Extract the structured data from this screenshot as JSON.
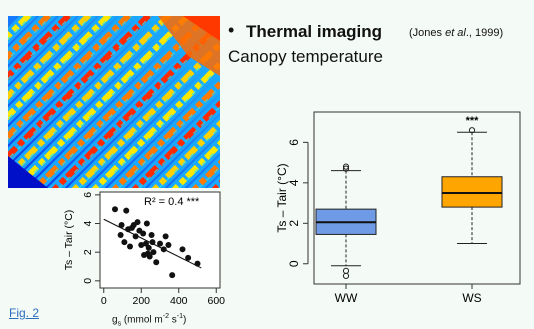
{
  "heading": {
    "bullet": "•",
    "title": "Thermal imaging",
    "citation_prefix": "(Jones ",
    "citation_italic": "et al",
    "citation_suffix": "., 1999)",
    "subtitle": "Canopy temperature"
  },
  "thermal_image": {
    "icon": "thermal-canopy-image"
  },
  "fig_link": "Fig. 2",
  "gs_axis_label": {
    "main": "g",
    "sub": "s",
    "unit_open": " (mmol m",
    "sup": "-2",
    "unit_mid": " s",
    "sup2": "-1",
    "unit_close": ")"
  },
  "chart_data": [
    {
      "type": "box",
      "ylabel": "Ts – Tair (°C)",
      "ylim": [
        -1,
        7.5
      ],
      "yticks": [
        0,
        2,
        4,
        6
      ],
      "categories": [
        "WW",
        "WS"
      ],
      "colors": {
        "WW": "#6f9ae6",
        "WS": "#ffa500"
      },
      "annotation": "***",
      "boxes": [
        {
          "name": "WW",
          "whisker_low": -0.1,
          "q1": 1.45,
          "median": 2.05,
          "q3": 2.7,
          "whisker_high": 4.6,
          "outliers": [
            4.8,
            4.7,
            -0.35,
            -0.6
          ]
        },
        {
          "name": "WS",
          "whisker_low": 1.0,
          "q1": 2.8,
          "median": 3.5,
          "q3": 4.3,
          "whisker_high": 6.5,
          "outliers": [
            6.6
          ]
        }
      ]
    },
    {
      "type": "scatter",
      "ylabel": "Ts – Tair (°C)",
      "xlim": [
        -20,
        620
      ],
      "ylim": [
        -0.5,
        6.2
      ],
      "xticks": [
        0,
        200,
        400,
        600
      ],
      "yticks": [
        0,
        2,
        4,
        6
      ],
      "annotation": "R² =  0.4 ***",
      "fit_line": [
        [
          0,
          4.3
        ],
        [
          520,
          0.9
        ]
      ],
      "points": [
        [
          60,
          5.0
        ],
        [
          95,
          3.9
        ],
        [
          120,
          4.9
        ],
        [
          140,
          2.4
        ],
        [
          110,
          2.7
        ],
        [
          150,
          3.7
        ],
        [
          160,
          3.9
        ],
        [
          170,
          3.1
        ],
        [
          180,
          4.1
        ],
        [
          190,
          3.5
        ],
        [
          200,
          2.5
        ],
        [
          210,
          3.3
        ],
        [
          215,
          1.8
        ],
        [
          225,
          2.6
        ],
        [
          230,
          4.0
        ],
        [
          240,
          2.3
        ],
        [
          245,
          1.7
        ],
        [
          255,
          3.2
        ],
        [
          260,
          2.7
        ],
        [
          265,
          2.0
        ],
        [
          280,
          1.3
        ],
        [
          300,
          2.6
        ],
        [
          320,
          2.2
        ],
        [
          330,
          3.1
        ],
        [
          345,
          2.5
        ],
        [
          365,
          0.4
        ],
        [
          420,
          2.2
        ],
        [
          450,
          1.6
        ],
        [
          500,
          1.2
        ],
        [
          90,
          3.2
        ],
        [
          130,
          3.6
        ],
        [
          235,
          1.9
        ]
      ]
    }
  ]
}
